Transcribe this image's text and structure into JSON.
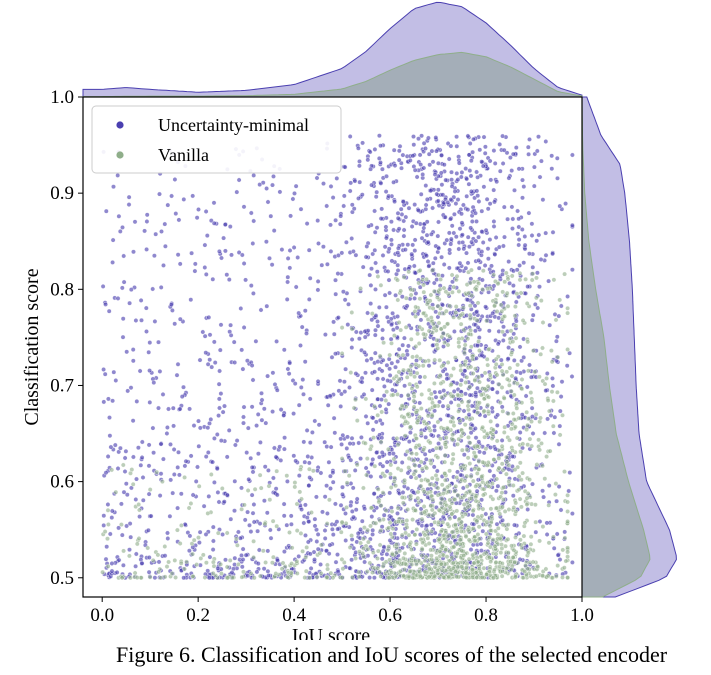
{
  "chart_data": {
    "type": "scatter",
    "subtype": "joint-plot-with-marginal-kde",
    "xlabel": "IoU score",
    "ylabel": "Classification score",
    "xlim": [
      -0.04,
      1.0
    ],
    "ylim": [
      0.48,
      1.0
    ],
    "x_ticks": [
      0.0,
      0.2,
      0.4,
      0.6,
      0.8,
      1.0
    ],
    "x_tick_labels": [
      "0.0",
      "0.2",
      "0.4",
      "0.6",
      "0.8",
      "1.0"
    ],
    "y_ticks": [
      0.5,
      0.6,
      0.7,
      0.8,
      0.9,
      1.0
    ],
    "y_tick_labels": [
      "0.5",
      "0.6",
      "0.7",
      "0.8",
      "0.9",
      "1.0"
    ],
    "legend": {
      "placement": "top-left",
      "entries": [
        "Uncertainty-minimal",
        "Vanilla"
      ]
    },
    "series": [
      {
        "name": "Uncertainty-minimal",
        "color": "#4a3fb0",
        "marginal_fill": "#b7b3e0",
        "point_density_summary": "spread over IoU 0-1, dense at IoU 0.6-0.95, classification 0.5-0.95",
        "marginal_x_kde": {
          "x": [
            0.0,
            0.05,
            0.1,
            0.2,
            0.3,
            0.4,
            0.5,
            0.55,
            0.6,
            0.65,
            0.7,
            0.75,
            0.8,
            0.85,
            0.9,
            0.95,
            1.0
          ],
          "density": [
            0.08,
            0.1,
            0.08,
            0.05,
            0.07,
            0.13,
            0.3,
            0.48,
            0.72,
            0.93,
            1.0,
            0.95,
            0.78,
            0.55,
            0.3,
            0.1,
            0.02
          ]
        },
        "marginal_y_kde": {
          "y": [
            0.48,
            0.5,
            0.52,
            0.55,
            0.6,
            0.65,
            0.7,
            0.75,
            0.8,
            0.85,
            0.9,
            0.93,
            0.96,
            1.0
          ],
          "density": [
            0.35,
            0.88,
            1.0,
            0.92,
            0.68,
            0.6,
            0.57,
            0.55,
            0.53,
            0.5,
            0.45,
            0.4,
            0.2,
            0.05
          ]
        }
      },
      {
        "name": "Vanilla",
        "color": "#8fae8a",
        "marginal_fill": "#9aa8a8",
        "point_density_summary": "concentrated at IoU 0.55-0.95, classification 0.5-0.75",
        "marginal_x_kde": {
          "x": [
            0.0,
            0.1,
            0.2,
            0.3,
            0.4,
            0.5,
            0.55,
            0.6,
            0.65,
            0.7,
            0.75,
            0.8,
            0.85,
            0.9,
            0.95,
            1.0
          ],
          "density": [
            0.01,
            0.02,
            0.02,
            0.03,
            0.06,
            0.18,
            0.35,
            0.6,
            0.82,
            0.95,
            1.0,
            0.9,
            0.68,
            0.4,
            0.12,
            0.02
          ]
        },
        "marginal_y_kde": {
          "y": [
            0.48,
            0.5,
            0.52,
            0.55,
            0.6,
            0.65,
            0.7,
            0.75,
            0.8,
            0.85,
            0.9,
            0.95,
            1.0
          ],
          "density": [
            0.3,
            0.85,
            1.0,
            0.9,
            0.68,
            0.5,
            0.4,
            0.32,
            0.2,
            0.1,
            0.04,
            0.01,
            0.0
          ]
        }
      }
    ]
  },
  "caption": "Figure 6.  Classification and IoU scores of the selected encoder"
}
